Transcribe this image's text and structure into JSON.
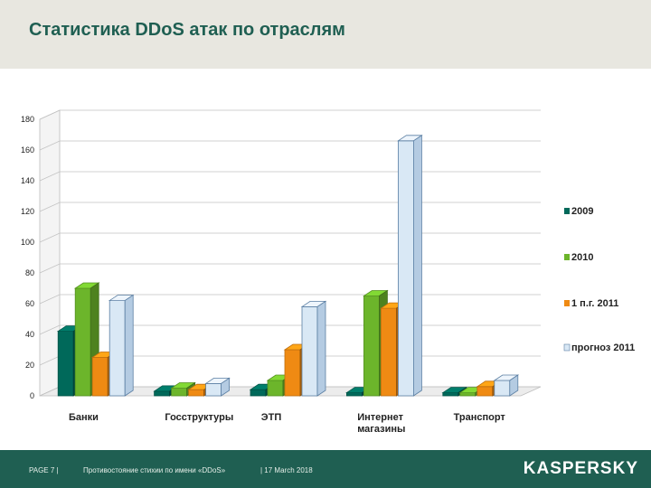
{
  "header": {
    "title": "Статистика DDoS атак по отраслям"
  },
  "footer": {
    "page": "PAGE 7 |",
    "subtitle": "Противостояние стихии по имени «DDoS»",
    "date": "| 17 March 2018",
    "logo": "KASPERSKY"
  },
  "colors": {
    "2009": "#00695a",
    "2010": "#6cb52b",
    "1 п.г. 2011": "#ef8a13",
    "прогноз 2011": "#d9e8f5"
  },
  "chart_data": {
    "type": "bar",
    "title": "Статистика DDoS атак по отраслям",
    "categories": [
      "Банки",
      "Госструктуры",
      "ЭТП",
      "Интернет магазины",
      "Транспорт"
    ],
    "series": [
      {
        "name": "2009",
        "values": [
          42,
          3,
          4,
          2,
          2
        ]
      },
      {
        "name": "2010",
        "values": [
          70,
          5,
          10,
          65,
          2
        ]
      },
      {
        "name": "1 п.г. 2011",
        "values": [
          25,
          4,
          30,
          57,
          6
        ]
      },
      {
        "name": "прогноз 2011",
        "values": [
          62,
          8,
          58,
          166,
          10
        ]
      }
    ],
    "yticks": [
      0,
      20,
      40,
      60,
      80,
      100,
      120,
      140,
      160,
      180
    ],
    "ylim": [
      0,
      180
    ],
    "xlabel": "",
    "ylabel": "",
    "legend": "right"
  }
}
